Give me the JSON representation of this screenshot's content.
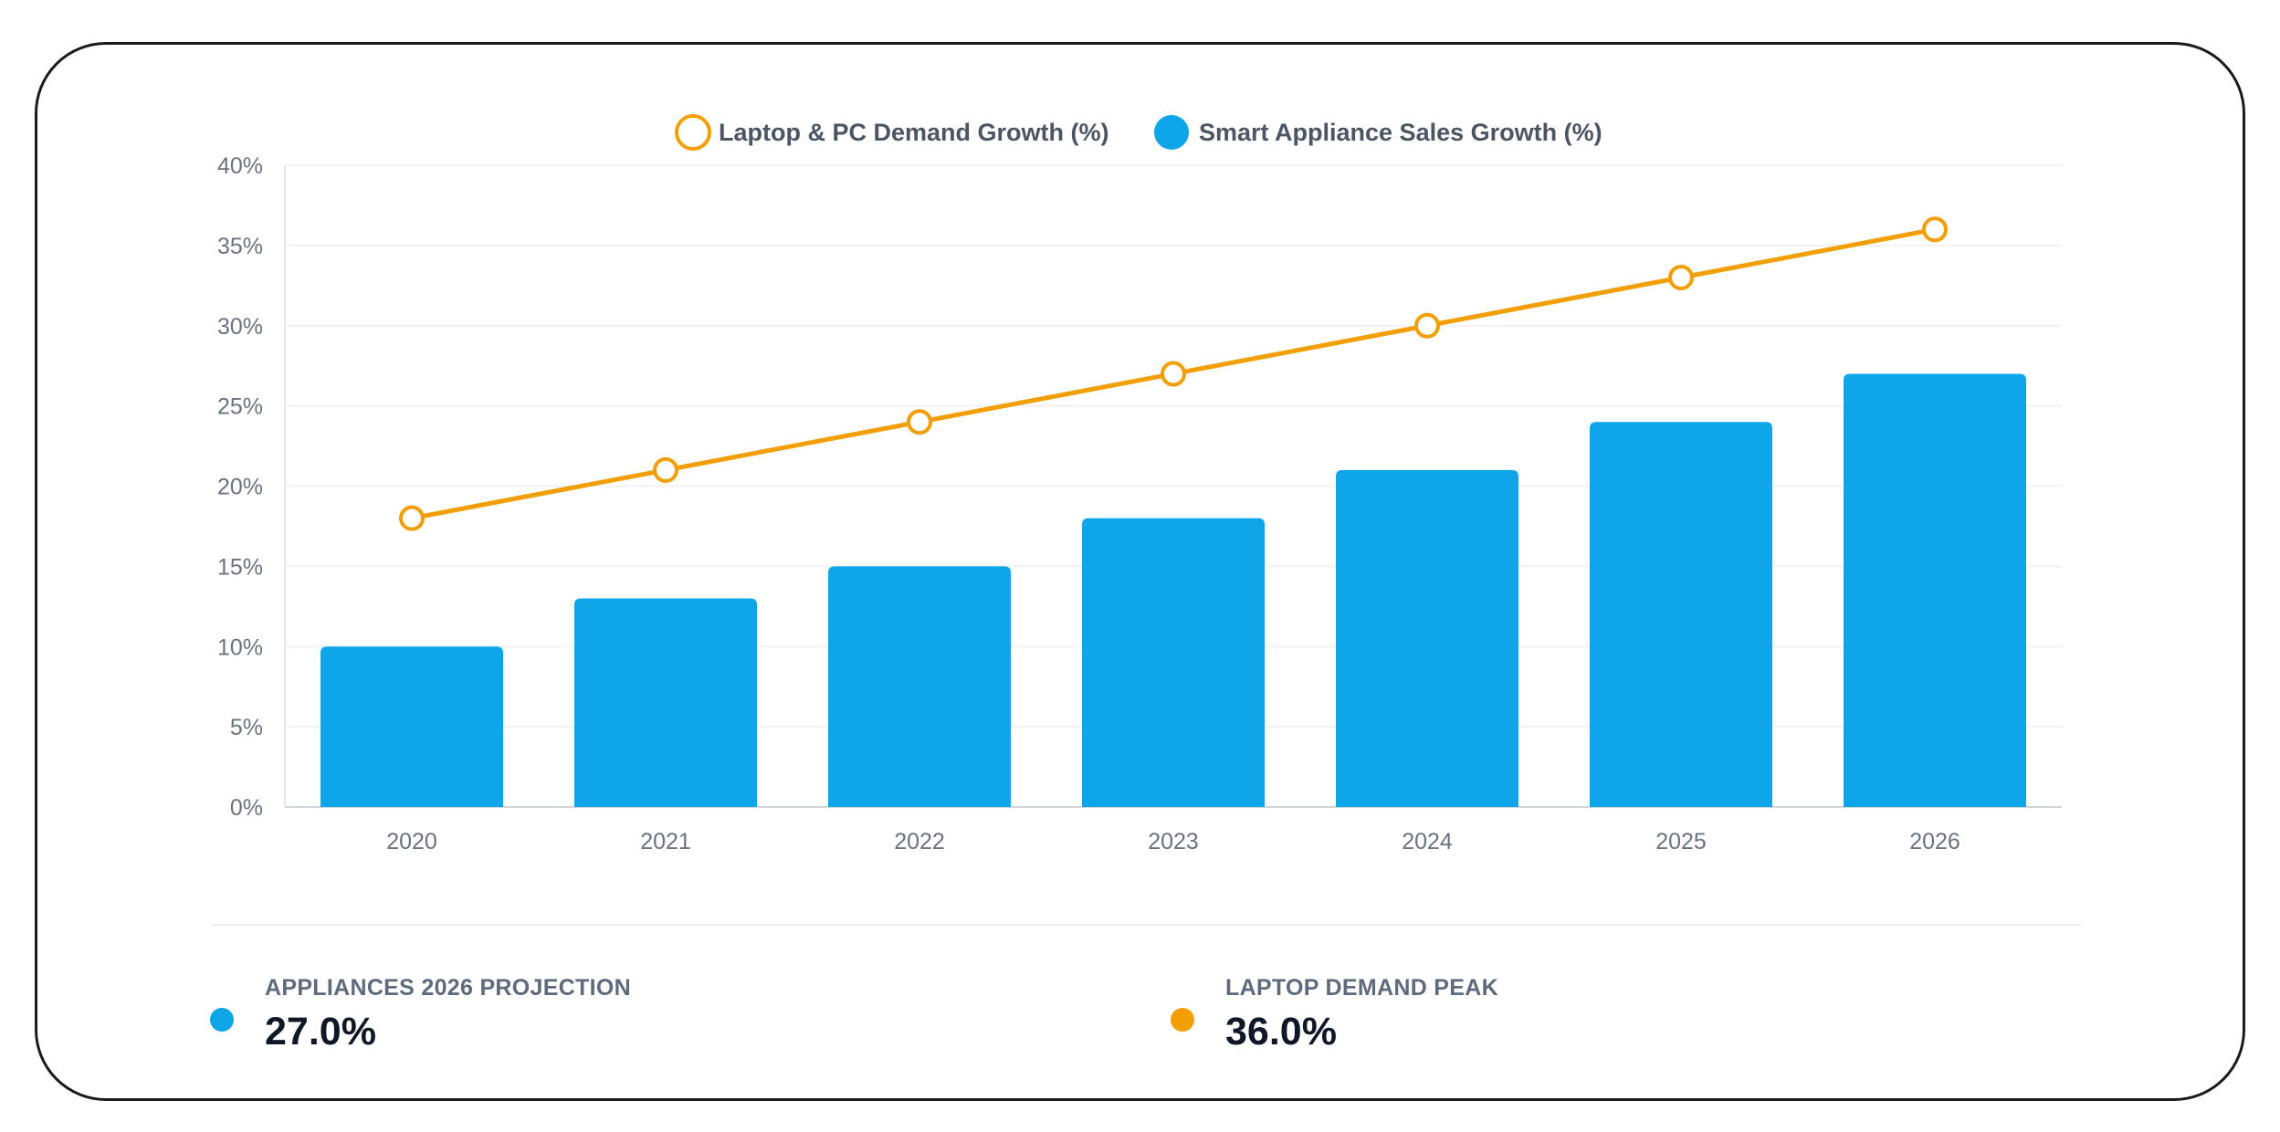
{
  "chart_data": {
    "type": "bar",
    "categories": [
      "2020",
      "2021",
      "2022",
      "2023",
      "2024",
      "2025",
      "2026"
    ],
    "series": [
      {
        "name": "Laptop & PC Demand Growth (%)",
        "type": "line",
        "color": "#F29F05",
        "values": [
          18,
          21,
          24,
          27,
          30,
          33,
          36
        ]
      },
      {
        "name": "Smart Appliance Sales Growth (%)",
        "type": "bar",
        "color": "#0EA5E9",
        "values": [
          10,
          13,
          15,
          18,
          21,
          24,
          27
        ]
      }
    ],
    "ylim": [
      0,
      40
    ],
    "yticks": [
      "0%",
      "5%",
      "10%",
      "15%",
      "20%",
      "25%",
      "30%",
      "35%",
      "40%"
    ],
    "grid": true,
    "legend_position": "top-center"
  },
  "stats": [
    {
      "label": "APPLIANCES 2026 PROJECTION",
      "value": "27.0%",
      "color": "#0EA5E9"
    },
    {
      "label": "LAPTOP DEMAND PEAK",
      "value": "36.0%",
      "color": "#F29F05"
    }
  ]
}
